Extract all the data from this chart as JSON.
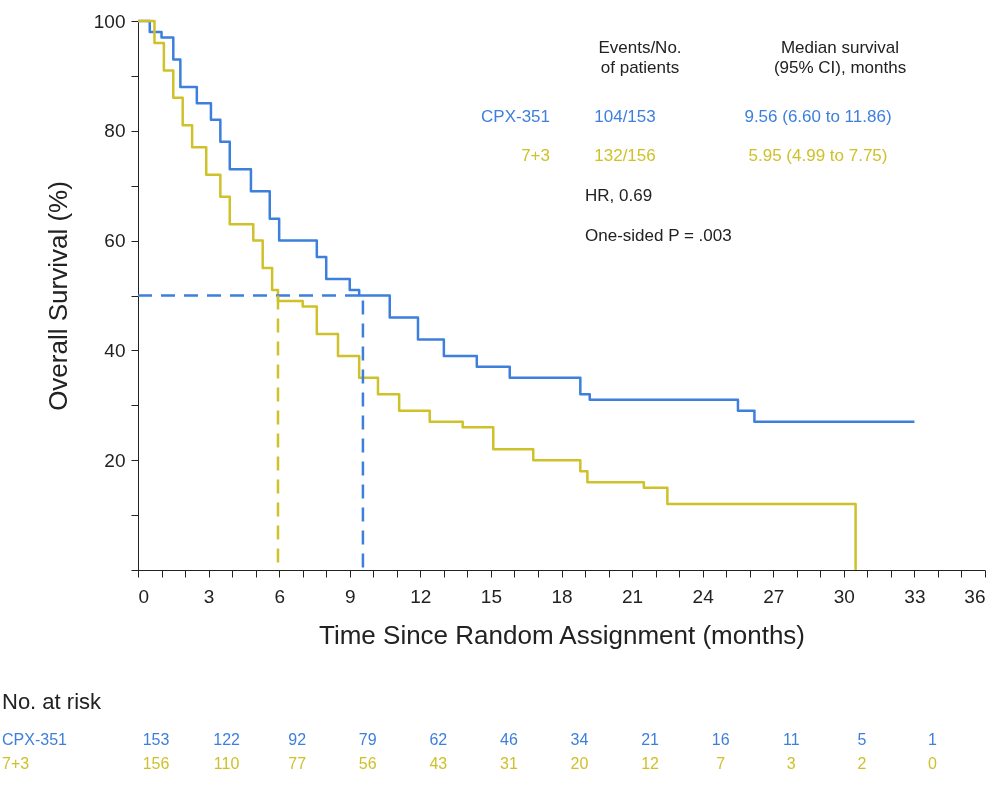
{
  "chart_data": {
    "type": "step",
    "xlabel": "Time Since Random Assignment (months)",
    "ylabel": "Overall Survival (%)",
    "xlim": [
      0,
      36
    ],
    "ylim": [
      0,
      100
    ],
    "xticks": [
      0,
      {
        "value": 1,
        "label": null
      },
      {
        "value": 2,
        "label": null
      },
      3,
      {
        "value": 4,
        "label": null
      },
      {
        "value": 5,
        "label": null
      },
      6,
      {
        "value": 7,
        "label": null
      },
      {
        "value": 8,
        "label": null
      },
      9,
      {
        "value": 10,
        "label": null
      },
      {
        "value": 11,
        "label": null
      },
      12,
      {
        "value": 13,
        "label": null
      },
      {
        "value": 14,
        "label": null
      },
      15,
      {
        "value": 16,
        "label": null
      },
      {
        "value": 17,
        "label": null
      },
      18,
      {
        "value": 19,
        "label": null
      },
      {
        "value": 20,
        "label": null
      },
      21,
      {
        "value": 22,
        "label": null
      },
      {
        "value": 23,
        "label": null
      },
      24,
      {
        "value": 25,
        "label": null
      },
      {
        "value": 26,
        "label": null
      },
      27,
      {
        "value": 28,
        "label": null
      },
      {
        "value": 29,
        "label": null
      },
      30,
      {
        "value": 31,
        "label": null
      },
      {
        "value": 32,
        "label": null
      },
      33,
      {
        "value": 34,
        "label": null
      },
      {
        "value": 35,
        "label": null
      },
      36
    ],
    "yticks": [
      {
        "value": 0,
        "label": null
      },
      {
        "value": 10,
        "label": null
      },
      20,
      {
        "value": 30,
        "label": null
      },
      40,
      {
        "value": 50,
        "label": null
      },
      60,
      {
        "value": 70,
        "label": null
      },
      80,
      {
        "value": 90,
        "label": null
      },
      100
    ],
    "legend": "top",
    "grid": false,
    "marker": "none",
    "series": [
      {
        "name": "CPX-351",
        "color": "#3d7fdc",
        "x": [
          0,
          0.5,
          1.0,
          1.5,
          1.8,
          2.5,
          3.1,
          3.5,
          3.9,
          4.8,
          5.6,
          6.0,
          7.6,
          8.0,
          9.0,
          9.4,
          10.7,
          11.9,
          13.0,
          14.4,
          15.8,
          18.8,
          19.2,
          25.5,
          26.2,
          33
        ],
        "values": [
          100,
          98,
          97,
          93,
          88,
          85,
          82,
          78,
          73,
          69,
          64,
          60,
          57,
          53,
          51,
          50,
          46,
          42,
          39,
          37,
          35,
          32,
          31,
          29,
          27,
          27
        ]
      },
      {
        "name": "7+3",
        "color": "#cfc12a",
        "x": [
          0,
          0.7,
          1.1,
          1.5,
          1.9,
          2.3,
          2.9,
          3.5,
          3.9,
          4.9,
          5.3,
          5.7,
          5.95,
          7.0,
          7.6,
          8.5,
          9.4,
          10.2,
          11.1,
          12.4,
          13.8,
          15.1,
          16.8,
          18.8,
          19.1,
          21.5,
          22.5,
          30.5,
          30.5
        ],
        "values": [
          100,
          96,
          91,
          86,
          81,
          77,
          72,
          68,
          63,
          60,
          55,
          51,
          49,
          48,
          43,
          39,
          35,
          32,
          29,
          27,
          26,
          22,
          20,
          18,
          16,
          15,
          12,
          12,
          0
        ]
      },
      {
        "type": "line",
        "line_style": "dashed",
        "color": "#3d7fdc",
        "x": [
          0,
          9.56,
          9.56
        ],
        "values": [
          50,
          50,
          0
        ]
      },
      {
        "type": "line",
        "line_style": "dashed",
        "color": "#cfc12a",
        "x": [
          5.95,
          5.95
        ],
        "values": [
          50,
          0
        ]
      }
    ],
    "annotations": [
      "Events/No.\nof patients",
      "Median survival\n(95% CI), months",
      "104/153",
      "9.56 (6.60 to 11.86)",
      "132/156",
      "5.95 (4.99 to 7.75)",
      "HR, 0.69",
      "One-sided P = .003",
      "No. at risk",
      "153",
      "122",
      "92",
      "79",
      "62",
      "46",
      "34",
      "21",
      "16",
      "11",
      "5",
      "1",
      "156",
      "110",
      "77",
      "56",
      "43",
      "31",
      "20",
      "12",
      "7",
      "3",
      "2",
      "0"
    ]
  }
}
